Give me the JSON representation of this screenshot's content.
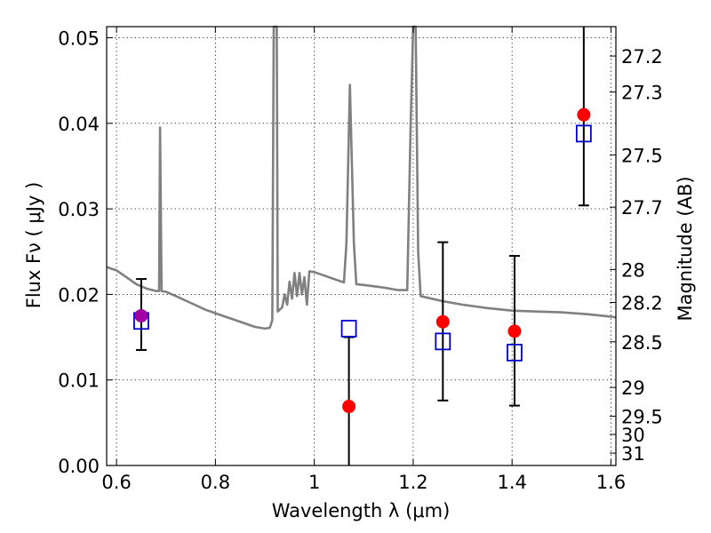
{
  "chart_data": {
    "type": "scatter",
    "title": "",
    "xlabel": "Wavelength  λ (μm)",
    "ylabel": "Flux  Fν  ( μJy )",
    "ylabel_right": "Magnitude (AB)",
    "xlim": [
      0.58,
      1.61
    ],
    "ylim": [
      0.0,
      0.0513
    ],
    "grid": true,
    "x_ticks": [
      {
        "value": 0.6,
        "label": "0.6"
      },
      {
        "value": 0.8,
        "label": "0.8"
      },
      {
        "value": 1.0,
        "label": "1"
      },
      {
        "value": 1.2,
        "label": "1.2"
      },
      {
        "value": 1.4,
        "label": "1.4"
      },
      {
        "value": 1.6,
        "label": "1.6"
      }
    ],
    "y_ticks": [
      {
        "value": 0.0,
        "label": "0.00"
      },
      {
        "value": 0.01,
        "label": "0.01"
      },
      {
        "value": 0.02,
        "label": "0.02"
      },
      {
        "value": 0.03,
        "label": "0.03"
      },
      {
        "value": 0.04,
        "label": "0.04"
      },
      {
        "value": 0.05,
        "label": "0.05"
      }
    ],
    "right_ticks": [
      {
        "mag": 27.2,
        "label": "27.2"
      },
      {
        "mag": 27.3,
        "label": "27.3"
      },
      {
        "mag": 27.5,
        "label": "27.5"
      },
      {
        "mag": 27.7,
        "label": "27.7"
      },
      {
        "mag": 28.0,
        "label": "28"
      },
      {
        "mag": 28.2,
        "label": "28.2"
      },
      {
        "mag": 28.5,
        "label": "28.5"
      },
      {
        "mag": 29.0,
        "label": "29"
      },
      {
        "mag": 29.5,
        "label": "29.5"
      },
      {
        "mag": 30.0,
        "label": "30"
      },
      {
        "mag": 31.0,
        "label": "31"
      }
    ],
    "series": [
      {
        "kind": "line",
        "color": "#808080",
        "points": [
          [
            0.58,
            0.0232
          ],
          [
            0.6,
            0.0228
          ],
          [
            0.62,
            0.022
          ],
          [
            0.64,
            0.0212
          ],
          [
            0.66,
            0.0207
          ],
          [
            0.68,
            0.0204
          ],
          [
            0.686,
            0.0204
          ],
          [
            0.688,
            0.0395
          ],
          [
            0.691,
            0.0204
          ],
          [
            0.7,
            0.0203
          ],
          [
            0.72,
            0.0198
          ],
          [
            0.75,
            0.019
          ],
          [
            0.78,
            0.0182
          ],
          [
            0.8,
            0.0178
          ],
          [
            0.83,
            0.0172
          ],
          [
            0.86,
            0.0166
          ],
          [
            0.88,
            0.0162
          ],
          [
            0.9,
            0.016
          ],
          [
            0.91,
            0.0161
          ],
          [
            0.915,
            0.017
          ],
          [
            0.918,
            0.0513
          ],
          [
            0.924,
            0.0513
          ],
          [
            0.926,
            0.018
          ],
          [
            0.935,
            0.0185
          ],
          [
            0.94,
            0.02
          ],
          [
            0.945,
            0.0188
          ],
          [
            0.95,
            0.0215
          ],
          [
            0.955,
            0.0195
          ],
          [
            0.96,
            0.0225
          ],
          [
            0.965,
            0.0198
          ],
          [
            0.97,
            0.0225
          ],
          [
            0.975,
            0.02
          ],
          [
            0.98,
            0.022
          ],
          [
            0.985,
            0.0188
          ],
          [
            0.99,
            0.0227
          ],
          [
            1.0,
            0.0226
          ],
          [
            1.02,
            0.0222
          ],
          [
            1.04,
            0.0218
          ],
          [
            1.06,
            0.0214
          ],
          [
            1.065,
            0.026
          ],
          [
            1.072,
            0.0445
          ],
          [
            1.08,
            0.026
          ],
          [
            1.085,
            0.0212
          ],
          [
            1.1,
            0.0211
          ],
          [
            1.14,
            0.0208
          ],
          [
            1.17,
            0.0205
          ],
          [
            1.188,
            0.0205
          ],
          [
            1.195,
            0.04
          ],
          [
            1.2,
            0.0513
          ],
          [
            1.205,
            0.0513
          ],
          [
            1.21,
            0.025
          ],
          [
            1.215,
            0.0198
          ],
          [
            1.26,
            0.0192
          ],
          [
            1.3,
            0.0188
          ],
          [
            1.35,
            0.0184
          ],
          [
            1.4,
            0.0181
          ],
          [
            1.45,
            0.018
          ],
          [
            1.5,
            0.0179
          ],
          [
            1.55,
            0.0177
          ],
          [
            1.6,
            0.0174
          ],
          [
            1.61,
            0.0173
          ]
        ]
      },
      {
        "kind": "points-with-errors",
        "marker": "circle",
        "color": "#ff0000",
        "points": [
          {
            "x": 0.65,
            "y": 0.0175,
            "yerr_low": 0.0135,
            "yerr_high": 0.0218,
            "color": "#a000a0"
          },
          {
            "x": 1.07,
            "y": 0.0069,
            "yerr_low": 0.0,
            "yerr_high": 0.015
          },
          {
            "x": 1.26,
            "y": 0.0168,
            "yerr_low": 0.0076,
            "yerr_high": 0.0261
          },
          {
            "x": 1.405,
            "y": 0.0157,
            "yerr_low": 0.007,
            "yerr_high": 0.0245
          },
          {
            "x": 1.545,
            "y": 0.041,
            "yerr_low": 0.0304,
            "yerr_high": 0.0513
          }
        ]
      },
      {
        "kind": "points",
        "marker": "open-square",
        "color": "#0000cc",
        "points": [
          {
            "x": 0.65,
            "y": 0.0169
          },
          {
            "x": 1.07,
            "y": 0.016
          },
          {
            "x": 1.26,
            "y": 0.0145
          },
          {
            "x": 1.405,
            "y": 0.0132
          },
          {
            "x": 1.545,
            "y": 0.0388
          }
        ]
      }
    ]
  }
}
